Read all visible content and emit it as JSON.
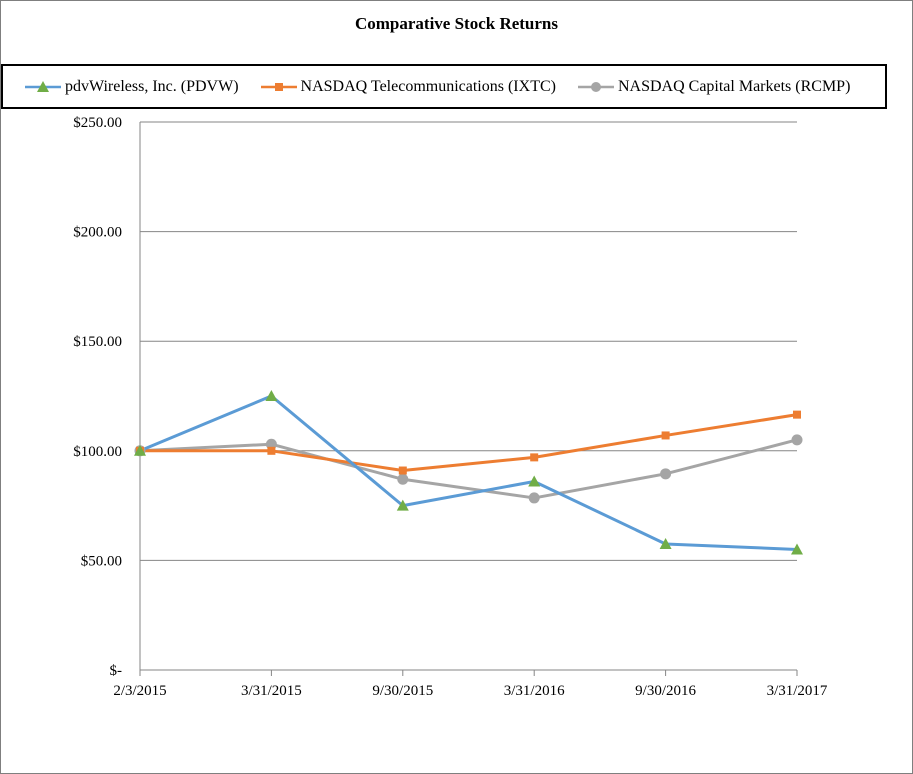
{
  "chart_data": {
    "type": "line",
    "title": "Comparative Stock Returns",
    "categories": [
      "2/3/2015",
      "3/31/2015",
      "9/30/2015",
      "3/31/2016",
      "9/30/2016",
      "3/31/2017"
    ],
    "y_ticks": [
      0,
      50,
      100,
      150,
      200,
      250
    ],
    "y_tick_labels": [
      "$-",
      "$50.00",
      "$100.00",
      "$150.00",
      "$200.00",
      "$250.00"
    ],
    "ylim": [
      0,
      250
    ],
    "grid": true,
    "legend_position": "top",
    "series": [
      {
        "name": "pdvWireless, Inc. (PDVW)",
        "values": [
          100,
          125,
          75,
          86,
          57.5,
          55
        ],
        "line_color": "#5b9bd5",
        "marker_color": "#70ad47",
        "marker": "triangle"
      },
      {
        "name": "NASDAQ Telecommunications (IXTC)",
        "values": [
          100,
          100,
          91,
          97,
          107,
          116.5
        ],
        "line_color": "#ed7d31",
        "marker_color": "#ed7d31",
        "marker": "square"
      },
      {
        "name": "NASDAQ Capital Markets (RCMP)",
        "values": [
          100,
          103,
          87,
          78.5,
          89.5,
          105
        ],
        "line_color": "#a5a5a5",
        "marker_color": "#a5a5a5",
        "marker": "circle"
      }
    ]
  }
}
